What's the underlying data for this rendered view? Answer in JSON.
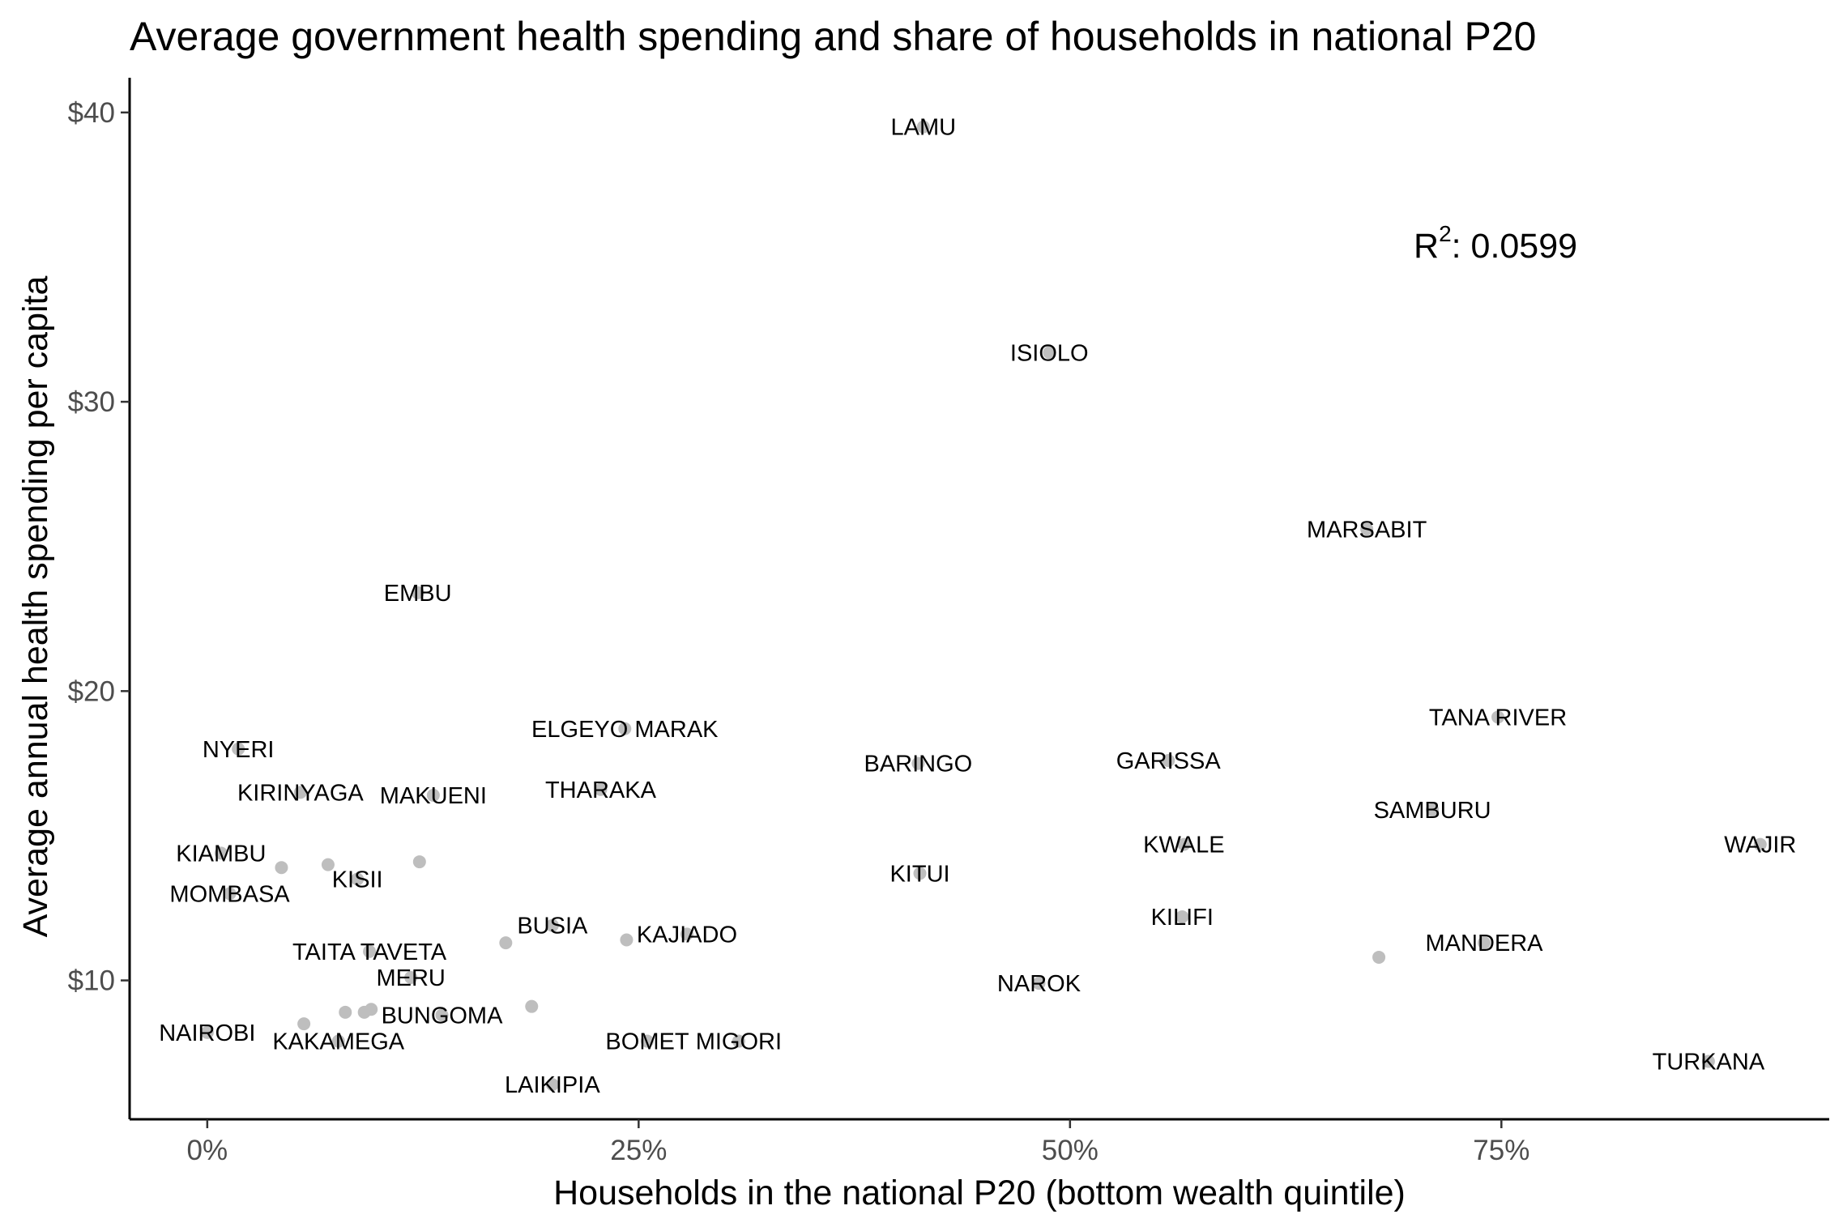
{
  "chart_data": {
    "type": "scatter",
    "title": "Average government health spending and share of households in national P20",
    "xlabel": "Households in the national P20 (bottom wealth quintile)",
    "ylabel": "Average annual health spending per capita",
    "xlim": [
      -0.045,
      0.94
    ],
    "ylim": [
      5.2,
      41.2
    ],
    "x_ticks": [
      0,
      0.25,
      0.5,
      0.75
    ],
    "x_tick_labels": [
      "0%",
      "25%",
      "50%",
      "75%"
    ],
    "y_ticks": [
      10,
      20,
      30,
      40
    ],
    "y_tick_labels": [
      "$10",
      "$20",
      "$30",
      "$40"
    ],
    "grid": false,
    "legend": "none",
    "point_color": "#bebebe",
    "annotation": {
      "text": "R",
      "superscript": "2",
      "value": ": 0.0599"
    },
    "points": [
      {
        "label": "LAMU",
        "x": 0.415,
        "y": 39.5
      },
      {
        "label": "ISIOLO",
        "x": 0.488,
        "y": 31.7
      },
      {
        "label": "MARSABIT",
        "x": 0.672,
        "y": 25.6
      },
      {
        "label": "EMBU",
        "x": 0.122,
        "y": 23.4
      },
      {
        "label": "TANA RIVER",
        "x": 0.748,
        "y": 19.1
      },
      {
        "label": "ELGEYO MARAK",
        "x": 0.242,
        "y": 18.7
      },
      {
        "label": "NYERI",
        "x": 0.018,
        "y": 18.0
      },
      {
        "label": "BARINGO",
        "x": 0.412,
        "y": 17.5
      },
      {
        "label": "GARISSA",
        "x": 0.557,
        "y": 17.6
      },
      {
        "label": "KIRINYAGA",
        "x": 0.054,
        "y": 16.5
      },
      {
        "label": "MAKUENI",
        "x": 0.131,
        "y": 16.4
      },
      {
        "label": "THARAKA",
        "x": 0.228,
        "y": 16.6
      },
      {
        "label": "SAMBURU",
        "x": 0.71,
        "y": 15.9
      },
      {
        "label": "KWALE",
        "x": 0.566,
        "y": 14.7
      },
      {
        "label": "WAJIR",
        "x": 0.9,
        "y": 14.7
      },
      {
        "label": "KIAMBU",
        "x": 0.008,
        "y": 14.4
      },
      {
        "label": "",
        "x": 0.043,
        "y": 13.9
      },
      {
        "label": "",
        "x": 0.07,
        "y": 14.0
      },
      {
        "label": "",
        "x": 0.123,
        "y": 14.1
      },
      {
        "label": "KISII",
        "x": 0.087,
        "y": 13.5
      },
      {
        "label": "KITUI",
        "x": 0.413,
        "y": 13.7
      },
      {
        "label": "MOMBASA",
        "x": 0.013,
        "y": 13.0
      },
      {
        "label": "KILIFI",
        "x": 0.565,
        "y": 12.2
      },
      {
        "label": "BUSIA",
        "x": 0.2,
        "y": 11.9
      },
      {
        "label": "KAJIADO",
        "x": 0.278,
        "y": 11.6
      },
      {
        "label": "",
        "x": 0.173,
        "y": 11.3
      },
      {
        "label": "",
        "x": 0.243,
        "y": 11.4
      },
      {
        "label": "MANDERA",
        "x": 0.74,
        "y": 11.3
      },
      {
        "label": "TAITA TAVETA",
        "x": 0.094,
        "y": 11.0
      },
      {
        "label": "",
        "x": 0.679,
        "y": 10.8
      },
      {
        "label": "MERU",
        "x": 0.118,
        "y": 10.1
      },
      {
        "label": "NAROK",
        "x": 0.482,
        "y": 9.9
      },
      {
        "label": "",
        "x": 0.08,
        "y": 8.9
      },
      {
        "label": "",
        "x": 0.091,
        "y": 8.9
      },
      {
        "label": "",
        "x": 0.095,
        "y": 9.0
      },
      {
        "label": "",
        "x": 0.188,
        "y": 9.1
      },
      {
        "label": "BUNGOMA",
        "x": 0.136,
        "y": 8.8
      },
      {
        "label": "",
        "x": 0.056,
        "y": 8.5
      },
      {
        "label": "NAIROBI",
        "x": 0.0,
        "y": 8.2
      },
      {
        "label": "KAKAMEGA",
        "x": 0.076,
        "y": 7.9
      },
      {
        "label": "BOMET",
        "x": 0.255,
        "y": 7.9
      },
      {
        "label": "MIGORI",
        "x": 0.308,
        "y": 7.9
      },
      {
        "label": "TURKANA",
        "x": 0.87,
        "y": 7.2
      },
      {
        "label": "LAIKIPIA",
        "x": 0.2,
        "y": 6.4
      }
    ]
  }
}
